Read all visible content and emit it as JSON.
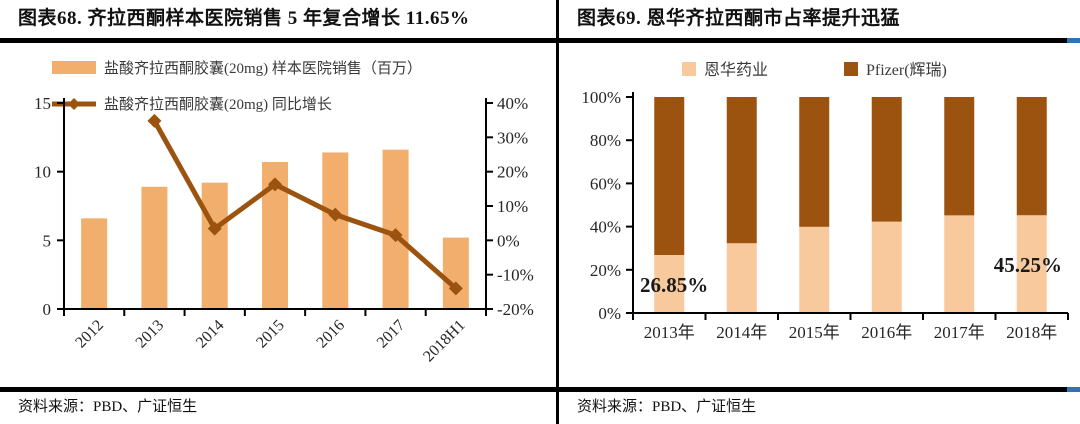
{
  "panels": [
    {
      "title": "图表68.  齐拉西酮样本医院销售 5 年复合增长 11.65%",
      "source": "资料来源：PBD、广证恒生"
    },
    {
      "title": "图表69.  恩华齐拉西酮市占率提升迅猛",
      "source": "资料来源：PBD、广证恒生"
    }
  ],
  "colors": {
    "bar_orange": "#F1AE6C",
    "light_peach": "#F9C99E",
    "dark_brown": "#9B530F",
    "axis_black": "#000000",
    "text_dark": "#262626",
    "legend_text": "#3a3a3a",
    "blue_accent": "#2E74B5"
  },
  "chart_data": [
    {
      "type": "bar",
      "subtype": "bar+line-combo",
      "title": "图表68.  齐拉西酮样本医院销售 5 年复合增长 11.65%",
      "categories": [
        "2012",
        "2013",
        "2014",
        "2015",
        "2016",
        "2017",
        "2018H1"
      ],
      "series": [
        {
          "name": "盐酸齐拉西酮胶囊(20mg)  样本医院销售（百万）",
          "type": "bar",
          "axis": "left",
          "values": [
            6.6,
            8.9,
            9.2,
            10.7,
            11.4,
            11.6,
            5.2
          ],
          "color": "#F1AE6C"
        },
        {
          "name": "盐酸齐拉西酮胶囊(20mg)  同比增长",
          "type": "line",
          "axis": "right",
          "marker": "diamond",
          "values": [
            null,
            34.8,
            3.4,
            16.3,
            7.5,
            1.5,
            -14.0
          ],
          "color": "#9B530F"
        }
      ],
      "left_axis": {
        "min": 0,
        "max": 15,
        "ticks": [
          0,
          5,
          10,
          15
        ],
        "suffix": ""
      },
      "right_axis": {
        "min": -20,
        "max": 40,
        "ticks": [
          -20,
          -10,
          0,
          10,
          20,
          30,
          40
        ],
        "suffix": "%"
      },
      "grid": false,
      "legend_position": "top-left"
    },
    {
      "type": "bar",
      "subtype": "stacked-100-percent",
      "title": "图表69.  恩华齐拉西酮市占率提升迅猛",
      "categories": [
        "2013年",
        "2014年",
        "2015年",
        "2016年",
        "2017年",
        "2018年"
      ],
      "series": [
        {
          "name": "恩华药业",
          "values": [
            26.85,
            32.3,
            39.9,
            42.3,
            45.2,
            45.25
          ],
          "color": "#F9C99E"
        },
        {
          "name": "Pfizer(辉瑞)",
          "values": [
            73.15,
            67.7,
            60.1,
            57.7,
            54.8,
            54.75
          ],
          "color": "#9B530F"
        }
      ],
      "y_axis": {
        "min": 0,
        "max": 100,
        "ticks": [
          0,
          20,
          40,
          60,
          80,
          100
        ],
        "suffix": "%"
      },
      "grid": false,
      "legend_position": "top-center",
      "annotations": [
        {
          "text": "26.85%",
          "x_index": 0
        },
        {
          "text": "45.25%",
          "x_index": 5
        }
      ]
    }
  ]
}
